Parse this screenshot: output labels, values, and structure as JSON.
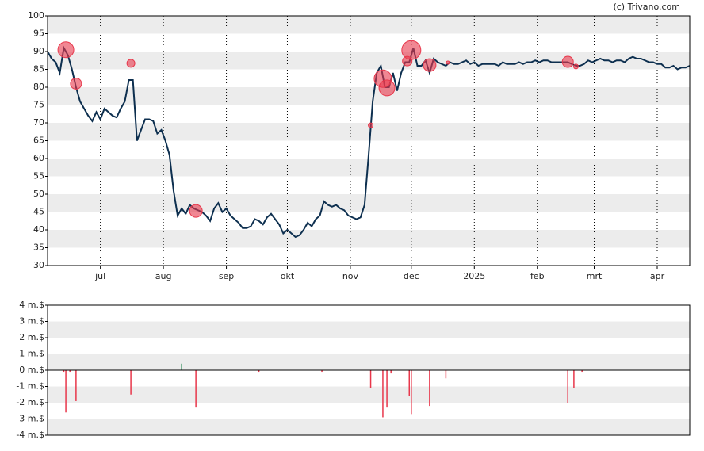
{
  "chart_data": [
    {
      "type": "line",
      "source": "(c) Trivano.com",
      "color": "#0d2f4f",
      "xlim": [
        0,
        316
      ],
      "xticks": [
        {
          "value": 26,
          "label": "jul"
        },
        {
          "value": 57,
          "label": "aug"
        },
        {
          "value": 88,
          "label": "sep"
        },
        {
          "value": 118,
          "label": "okt"
        },
        {
          "value": 149,
          "label": "nov"
        },
        {
          "value": 179,
          "label": "dec"
        },
        {
          "value": 210,
          "label": "2025"
        },
        {
          "value": 241,
          "label": "feb"
        },
        {
          "value": 269,
          "label": "mrt"
        },
        {
          "value": 300,
          "label": "apr"
        }
      ],
      "ylim": [
        30,
        100
      ],
      "yticks": [
        30,
        35,
        40,
        45,
        50,
        55,
        60,
        65,
        70,
        75,
        80,
        85,
        90,
        95,
        100
      ],
      "bands": true,
      "x_grid": true,
      "x": [
        0,
        2,
        4,
        6,
        8,
        10,
        12,
        14,
        16,
        18,
        20,
        22,
        24,
        26,
        28,
        30,
        32,
        34,
        36,
        38,
        40,
        42,
        44,
        46,
        48,
        50,
        52,
        54,
        56,
        58,
        60,
        62,
        64,
        66,
        68,
        70,
        72,
        74,
        76,
        78,
        80,
        82,
        84,
        86,
        88,
        90,
        92,
        94,
        96,
        98,
        100,
        102,
        104,
        106,
        108,
        110,
        112,
        114,
        116,
        118,
        120,
        122,
        124,
        126,
        128,
        130,
        132,
        134,
        136,
        138,
        140,
        142,
        144,
        146,
        148,
        150,
        152,
        154,
        156,
        158,
        160,
        162,
        164,
        166,
        168,
        170,
        172,
        174,
        176,
        178,
        180,
        182,
        184,
        186,
        188,
        190,
        192,
        194,
        196,
        198,
        200,
        202,
        204,
        206,
        208,
        210,
        212,
        214,
        216,
        218,
        220,
        222,
        224,
        226,
        228,
        230,
        232,
        234,
        236,
        238,
        240,
        242,
        244,
        246,
        248,
        250,
        252,
        254,
        256,
        258,
        260,
        262,
        264,
        266,
        268,
        270,
        272,
        274,
        276,
        278,
        280,
        282,
        284,
        286,
        288,
        290,
        292,
        294,
        296,
        298,
        300,
        302,
        304,
        306,
        308,
        310,
        312,
        314,
        316
      ],
      "series": [
        {
          "color": "#0d2f4f",
          "values": [
            90,
            88,
            87,
            84,
            91,
            89,
            85,
            80,
            76,
            74,
            72,
            70.5,
            73,
            71,
            74,
            73,
            72,
            71.5,
            74,
            76,
            82,
            82,
            65,
            68,
            71,
            71,
            70.5,
            67,
            68,
            65,
            61,
            51,
            44,
            46,
            44.5,
            47,
            46,
            45.5,
            45,
            44,
            42.5,
            46,
            47.5,
            45,
            46,
            44,
            43,
            42,
            40.5,
            40.5,
            41,
            43,
            42.5,
            41.5,
            43.5,
            44.5,
            43,
            41.5,
            39,
            40,
            39,
            38,
            38.5,
            40,
            42,
            41,
            43,
            44,
            48,
            47,
            46.5,
            47,
            46,
            45.5,
            44,
            43.5,
            43,
            43.5,
            47,
            61,
            76,
            84,
            86,
            80,
            80,
            84,
            79,
            84,
            87,
            87,
            91,
            86,
            86,
            87.5,
            84,
            88,
            87,
            86.5,
            86,
            87,
            86.5,
            86.5,
            87,
            87.5,
            86.5,
            87,
            86,
            86.5,
            86.5,
            86.5,
            86.5,
            86,
            87,
            86.5,
            86.5,
            86.5,
            87,
            86.5,
            87,
            87,
            87.5,
            87,
            87.5,
            87.5,
            87,
            87,
            87,
            87,
            87,
            86.5,
            86,
            86,
            86.5,
            87.5,
            87,
            87.5,
            88,
            87.5,
            87.5,
            87,
            87.5,
            87.5,
            87,
            88,
            88.5,
            88,
            88,
            87.5,
            87,
            87,
            86.5,
            86.5,
            85.5,
            85.5,
            86,
            85,
            85.5,
            85.5,
            86
          ]
        }
      ],
      "bubbles": {
        "color": "#e8374b",
        "x": [
          9,
          14,
          41,
          73,
          159,
          165,
          167,
          177,
          179,
          188,
          197,
          256,
          260
        ],
        "values": [
          90.5,
          81,
          86.7,
          45.3,
          69.3,
          82.4,
          79.8,
          87.3,
          90.4,
          86.2,
          86.9,
          87.1,
          85.8
        ],
        "sizes": [
          10,
          7,
          5,
          8,
          3,
          11,
          10,
          6,
          12,
          8,
          2,
          7,
          3
        ]
      }
    },
    {
      "type": "bar",
      "xlim": [
        0,
        316
      ],
      "ylim": [
        -4,
        4
      ],
      "yticks": [
        {
          "value": -4,
          "label": "-4 m.$"
        },
        {
          "value": -3,
          "label": "-3 m.$"
        },
        {
          "value": -2,
          "label": "-2 m.$"
        },
        {
          "value": -1,
          "label": "-1 m.$"
        },
        {
          "value": 0,
          "label": "0 m.$"
        },
        {
          "value": 1,
          "label": "1 m.$"
        },
        {
          "value": 2,
          "label": "2 m.$"
        },
        {
          "value": 3,
          "label": "3 m.$"
        },
        {
          "value": 4,
          "label": "4 m.$"
        }
      ],
      "bands": true,
      "positive_color": "#2e8b57",
      "negative_color": "#e8374b",
      "x": [
        8,
        9,
        11,
        14,
        41,
        66,
        73,
        104,
        135,
        159,
        165,
        167,
        169,
        178,
        179,
        188,
        196,
        256,
        259,
        263
      ],
      "values": [
        -0.1,
        -2.6,
        -0.1,
        -1.9,
        -1.5,
        0.4,
        -2.3,
        -0.1,
        -0.1,
        -1.1,
        -2.9,
        -2.3,
        -0.2,
        -1.6,
        -2.7,
        -2.2,
        -0.5,
        -2.0,
        -1.1,
        -0.1
      ]
    }
  ]
}
